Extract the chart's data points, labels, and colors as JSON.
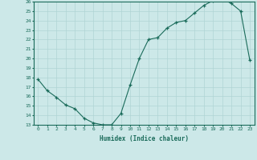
{
  "x_values": [
    0,
    1,
    2,
    3,
    4,
    5,
    6,
    7,
    8,
    9,
    10,
    11,
    12,
    13,
    14,
    15,
    16,
    17,
    18,
    19,
    20,
    21,
    22,
    23
  ],
  "y_values": [
    17.8,
    16.6,
    15.9,
    15.1,
    14.7,
    13.7,
    13.2,
    13.0,
    13.0,
    14.2,
    17.2,
    20.0,
    22.0,
    22.2,
    23.2,
    23.8,
    24.0,
    24.8,
    25.6,
    26.1,
    26.3,
    25.8,
    25.0,
    19.8
  ],
  "y_min": 13,
  "y_max": 26,
  "y_tick_step": 1,
  "x_label": "Humidex (Indice chaleur)",
  "line_color": "#1a6b5a",
  "marker_color": "#1a6b5a",
  "bg_color": "#cce8e8",
  "grid_color": "#b0d4d4",
  "axis_color": "#1a6b5a",
  "tick_color": "#1a6b5a",
  "label_color": "#1a6b5a"
}
